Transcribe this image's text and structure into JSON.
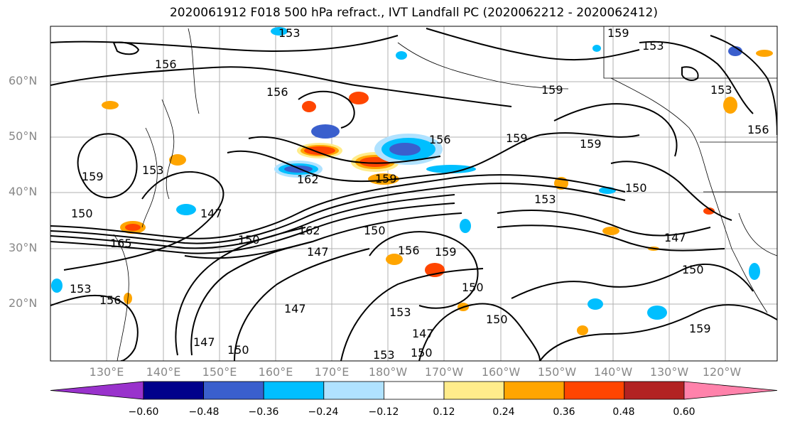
{
  "title": "2020061912 F018 500 hPa refract., IVT Landfall PC (2020062212 - 2020062412)",
  "lat_labels": [
    "60°N",
    "50°N",
    "40°N",
    "30°N",
    "20°N"
  ],
  "lon_labels": [
    "130°E",
    "140°E",
    "150°E",
    "160°E",
    "170°E",
    "180°W",
    "170°W",
    "160°W",
    "150°W",
    "140°W",
    "130°W",
    "120°W"
  ],
  "colorbar": {
    "colors": [
      "#9932cc",
      "#00008b",
      "#3a5fcd",
      "#00bfff",
      "#b0e2ff",
      "#ffffff",
      "#ffec8b",
      "#ffa500",
      "#ff4500",
      "#b22222",
      "#ff82ab"
    ],
    "tick_labels": [
      "−0.60",
      "−0.48",
      "−0.36",
      "−0.24",
      "−0.12",
      "0.12",
      "0.24",
      "0.36",
      "0.48",
      "0.60"
    ]
  },
  "contour_labels": [
    {
      "text": "153"
    },
    {
      "text": "156"
    },
    {
      "text": "159"
    },
    {
      "text": "153"
    },
    {
      "text": "156"
    },
    {
      "text": "159"
    },
    {
      "text": "159"
    },
    {
      "text": "156"
    },
    {
      "text": "159"
    },
    {
      "text": "150"
    },
    {
      "text": "153"
    },
    {
      "text": "147"
    },
    {
      "text": "150"
    },
    {
      "text": "162"
    },
    {
      "text": "150"
    },
    {
      "text": "165"
    },
    {
      "text": "147"
    },
    {
      "text": "150"
    },
    {
      "text": "156"
    },
    {
      "text": "159"
    },
    {
      "text": "150"
    },
    {
      "text": "153"
    },
    {
      "text": "147"
    },
    {
      "text": "150"
    },
    {
      "text": "153"
    },
    {
      "text": "150"
    },
    {
      "text": "147"
    },
    {
      "text": "147"
    },
    {
      "text": "159"
    },
    {
      "text": "150"
    },
    {
      "text": "147"
    },
    {
      "text": "153"
    },
    {
      "text": "156"
    },
    {
      "text": "159"
    },
    {
      "text": "156"
    },
    {
      "text": "153"
    },
    {
      "text": "162"
    },
    {
      "text": "159"
    },
    {
      "text": "150"
    },
    {
      "text": "153"
    }
  ]
}
